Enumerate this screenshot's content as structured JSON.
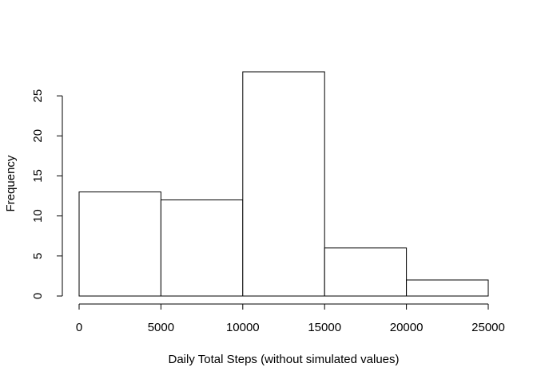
{
  "chart_data": {
    "type": "histogram",
    "x_label": "Daily Total Steps (without simulated values)",
    "y_label": "Frequency",
    "bins": [
      0,
      5000,
      10000,
      15000,
      20000,
      25000
    ],
    "values": [
      13,
      12,
      28,
      6,
      2
    ],
    "color": "#ffffff",
    "xlim": [
      0,
      25000
    ],
    "xticks": [
      0,
      5000,
      10000,
      15000,
      20000,
      25000
    ],
    "ylim": [
      0,
      28
    ],
    "yticks": [
      0,
      5,
      10,
      15,
      20,
      25
    ],
    "grid": false
  }
}
